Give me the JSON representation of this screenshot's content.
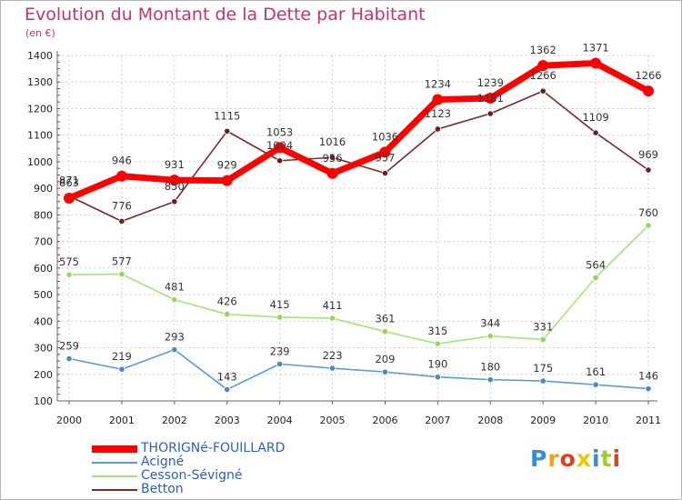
{
  "title": "Evolution du Montant de la Dette par Habitant",
  "unit": "(en €)",
  "brand": {
    "letters": [
      "P",
      "r",
      "o",
      "x",
      "i",
      "t",
      "i"
    ],
    "colors": [
      "#2f8fd8",
      "#f0a020",
      "#e0401f",
      "#f5c400",
      "#2f8fd8",
      "#9fcc2a",
      "#e0401f"
    ]
  },
  "chart_data": {
    "type": "line",
    "title": "Evolution du Montant de la Dette par Habitant",
    "ylabel": "(en €)",
    "xlabel": "",
    "x": [
      "2000",
      "2001",
      "2002",
      "2003",
      "2004",
      "2005",
      "2006",
      "2007",
      "2008",
      "2009",
      "2010",
      "2011"
    ],
    "ylim": [
      100,
      1400
    ],
    "yticks": [
      100,
      200,
      300,
      400,
      500,
      600,
      700,
      800,
      900,
      1000,
      1100,
      1200,
      1300,
      1400
    ],
    "grid": true,
    "legend_position": "bottom-left",
    "series": [
      {
        "name": "THORIGNé-FOUILLARD",
        "color": "#ff0000",
        "style": "thick",
        "values": [
          863,
          946,
          931,
          929,
          1053,
          956,
          1036,
          1234,
          1239,
          1362,
          1371,
          1266
        ]
      },
      {
        "name": "Acigné",
        "color": "#5b9bd5",
        "style": "thin",
        "values": [
          259,
          219,
          293,
          143,
          239,
          223,
          209,
          190,
          180,
          175,
          161,
          146
        ]
      },
      {
        "name": "Cesson-Sévigné",
        "color": "#a6e27a",
        "style": "thin",
        "values": [
          575,
          577,
          481,
          426,
          415,
          411,
          361,
          315,
          344,
          331,
          564,
          760
        ]
      },
      {
        "name": "Betton",
        "color": "#7a2a2a",
        "style": "thin",
        "values": [
          871,
          776,
          850,
          1115,
          1004,
          1016,
          957,
          1123,
          1181,
          1266,
          1109,
          969
        ]
      }
    ]
  }
}
